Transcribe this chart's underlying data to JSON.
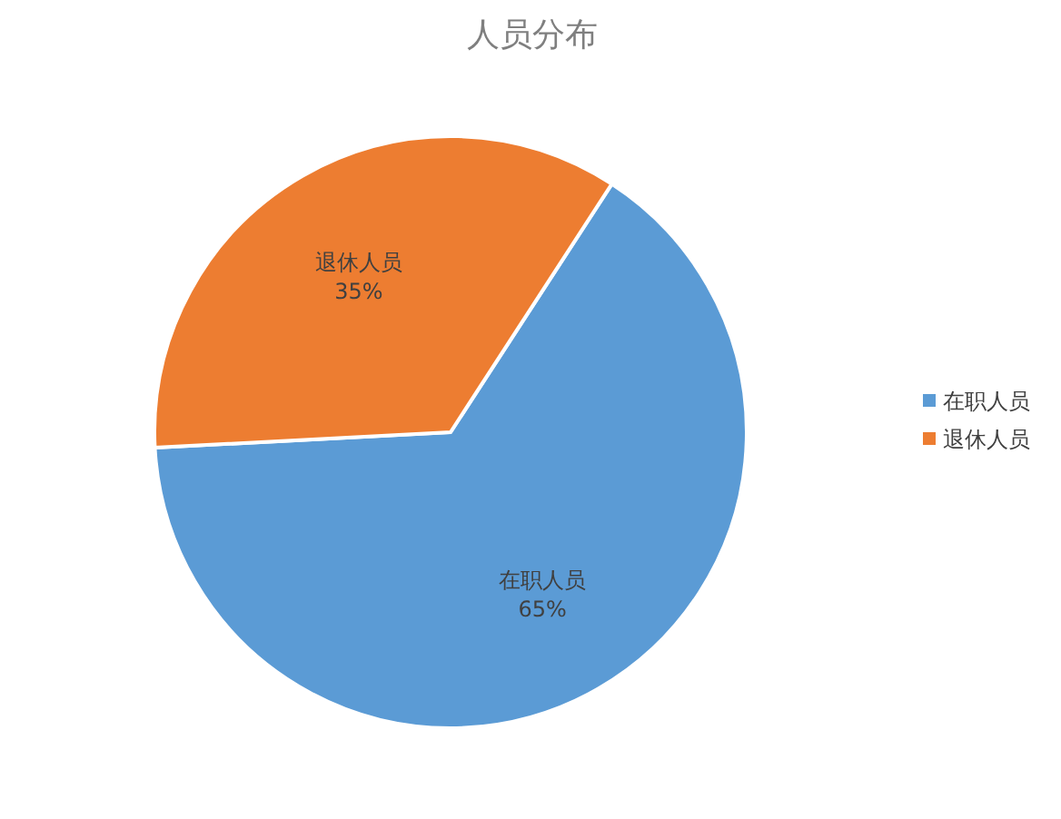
{
  "chart_data": {
    "type": "pie",
    "title": "人员分布",
    "categories": [
      "在职人员",
      "退休人员"
    ],
    "values": [
      65,
      35
    ],
    "value_labels": [
      "65%",
      "35%"
    ],
    "colors": [
      "#5b9bd5",
      "#ed7d31"
    ],
    "legend": "right"
  }
}
